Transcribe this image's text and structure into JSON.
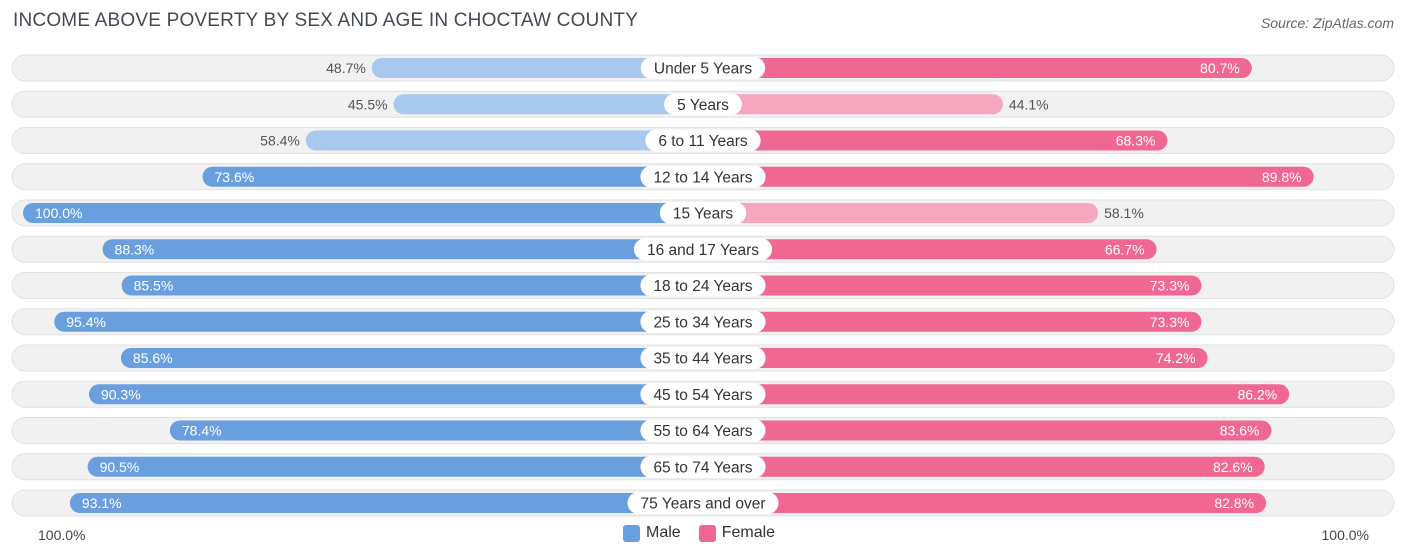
{
  "header": {
    "title": "INCOME ABOVE POVERTY BY SEX AND AGE IN CHOCTAW COUNTY",
    "source": "Source: ZipAtlas.com"
  },
  "axis": {
    "left_label": "100.0%",
    "right_label": "100.0%"
  },
  "legend": {
    "male_label": "Male",
    "female_label": "Female"
  },
  "colors": {
    "male_dark": "#6a9fdf",
    "male_light": "#a9c8ee",
    "female_dark": "#f06892",
    "female_light": "#f7a6c0",
    "row_bg": "#f1f1f1",
    "row_border": "#e1e1e1"
  },
  "chart_data": {
    "type": "bar",
    "orientation": "diverging-horizontal",
    "title": "INCOME ABOVE POVERTY BY SEX AND AGE IN CHOCTAW COUNTY",
    "xlim": [
      -100,
      100
    ],
    "categories": [
      "Under 5 Years",
      "5 Years",
      "6 to 11 Years",
      "12 to 14 Years",
      "15 Years",
      "16 and 17 Years",
      "18 to 24 Years",
      "25 to 34 Years",
      "35 to 44 Years",
      "45 to 54 Years",
      "55 to 64 Years",
      "65 to 74 Years",
      "75 Years and over"
    ],
    "series": [
      {
        "name": "Male",
        "values": [
          48.7,
          45.5,
          58.4,
          73.6,
          100.0,
          88.3,
          85.5,
          95.4,
          85.6,
          90.3,
          78.4,
          90.5,
          93.1
        ],
        "labels": [
          "48.7%",
          "45.5%",
          "58.4%",
          "73.6%",
          "100.0%",
          "88.3%",
          "85.5%",
          "95.4%",
          "85.6%",
          "90.3%",
          "78.4%",
          "90.5%",
          "93.1%"
        ]
      },
      {
        "name": "Female",
        "values": [
          80.7,
          44.1,
          68.3,
          89.8,
          58.1,
          66.7,
          73.3,
          73.3,
          74.2,
          86.2,
          83.6,
          82.6,
          82.8
        ],
        "labels": [
          "80.7%",
          "44.1%",
          "68.3%",
          "89.8%",
          "58.1%",
          "66.7%",
          "73.3%",
          "73.3%",
          "74.2%",
          "86.2%",
          "83.6%",
          "82.6%",
          "82.8%"
        ]
      }
    ]
  }
}
